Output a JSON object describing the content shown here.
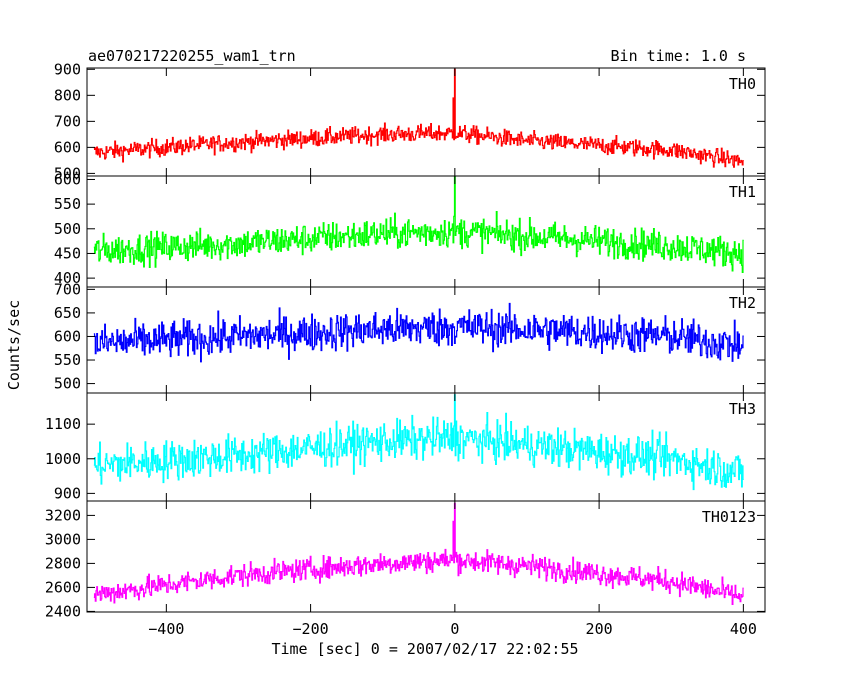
{
  "header": {
    "title": "ae070217220255_wam1_trn",
    "bin_time": "Bin time: 1.0 s"
  },
  "chart_data": {
    "type": "line",
    "xlabel": "Time [sec] 0 = 2007/02/17 22:02:55",
    "ylabel": "Counts/sec",
    "xlim": [
      -510,
      430
    ],
    "x_ticks": [
      -400,
      -200,
      0,
      200,
      400
    ],
    "x_range": [
      -500,
      400
    ],
    "bin_seconds": 1.0,
    "panels": [
      {
        "name": "TH0",
        "color": "#ff0000",
        "ylim": [
          490,
          905
        ],
        "y_ticks": [
          500,
          600,
          700,
          800,
          900
        ],
        "baseline_profile": [
          [
            -500,
            580
          ],
          [
            -300,
            620
          ],
          [
            -100,
            650
          ],
          [
            0,
            655
          ],
          [
            100,
            625
          ],
          [
            300,
            590
          ],
          [
            400,
            545
          ]
        ],
        "noise_amplitude": 32,
        "spikes": [
          {
            "x": 0,
            "value": 900
          },
          {
            "x": -2,
            "value": 790
          }
        ]
      },
      {
        "name": "TH1",
        "color": "#00ff00",
        "ylim": [
          382,
          607
        ],
        "y_ticks": [
          400,
          450,
          500,
          550,
          600
        ],
        "baseline_profile": [
          [
            -500,
            455
          ],
          [
            -300,
            470
          ],
          [
            -100,
            490
          ],
          [
            0,
            495
          ],
          [
            100,
            485
          ],
          [
            300,
            465
          ],
          [
            400,
            450
          ]
        ],
        "noise_amplitude": 30,
        "spikes": [
          {
            "x": 0,
            "value": 605
          }
        ]
      },
      {
        "name": "TH2",
        "color": "#0000ff",
        "ylim": [
          480,
          705
        ],
        "y_ticks": [
          500,
          550,
          600,
          650,
          700
        ],
        "baseline_profile": [
          [
            -500,
            585
          ],
          [
            -300,
            600
          ],
          [
            -100,
            615
          ],
          [
            0,
            620
          ],
          [
            100,
            615
          ],
          [
            300,
            600
          ],
          [
            400,
            580
          ]
        ],
        "noise_amplitude": 38,
        "spikes": []
      },
      {
        "name": "TH3",
        "color": "#00ffff",
        "ylim": [
          878,
          1190
        ],
        "y_ticks": [
          900,
          1000,
          1100
        ],
        "baseline_profile": [
          [
            -500,
            980
          ],
          [
            -300,
            1010
          ],
          [
            -100,
            1050
          ],
          [
            0,
            1060
          ],
          [
            100,
            1040
          ],
          [
            300,
            1000
          ],
          [
            400,
            960
          ]
        ],
        "noise_amplitude": 55,
        "spikes": [
          {
            "x": 0,
            "value": 1185
          }
        ]
      },
      {
        "name": "TH0123",
        "color": "#ff00ff",
        "ylim": [
          2395,
          3320
        ],
        "y_ticks": [
          2400,
          2600,
          2800,
          3000,
          3200
        ],
        "baseline_profile": [
          [
            -500,
            2540
          ],
          [
            -300,
            2700
          ],
          [
            -100,
            2800
          ],
          [
            0,
            2830
          ],
          [
            100,
            2780
          ],
          [
            300,
            2650
          ],
          [
            400,
            2520
          ]
        ],
        "noise_amplitude": 90,
        "spikes": [
          {
            "x": 0,
            "value": 3300
          },
          {
            "x": -2,
            "value": 3150
          }
        ]
      }
    ]
  }
}
